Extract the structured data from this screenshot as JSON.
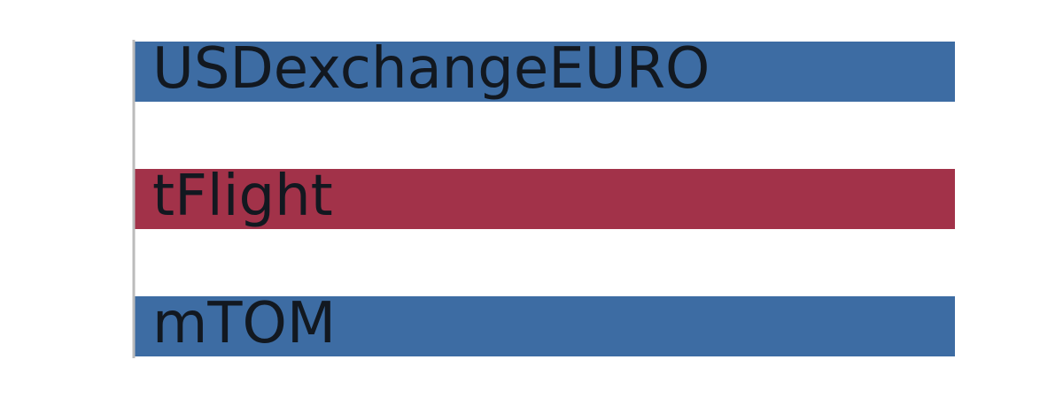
{
  "chart_data": {
    "type": "bar",
    "orientation": "horizontal",
    "categories": [
      "USDexchangeEURO",
      "tFlight",
      "mTOM"
    ],
    "values": [
      1,
      1,
      1
    ],
    "xlim": [
      0,
      1
    ],
    "colors": [
      "#3d6ca3",
      "#a23249",
      "#3d6ca3"
    ],
    "label_color": "#121820",
    "axis_color": "#bbbbbb",
    "grid": false,
    "legend": "none"
  }
}
